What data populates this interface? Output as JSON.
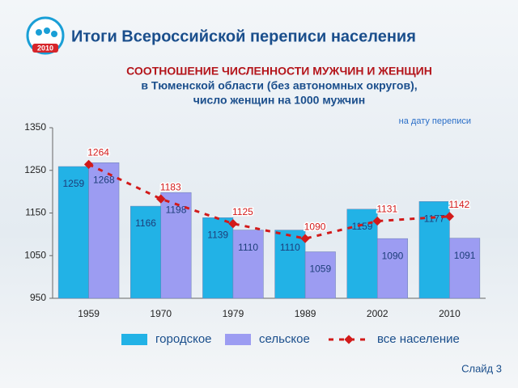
{
  "header": {
    "title": "Итоги Всероссийской переписи населения",
    "logo_year": "2010"
  },
  "chart_data": {
    "type": "bar",
    "title": [
      "СООТНОШЕНИЕ ЧИСЛЕННОСТИ МУЖЧИН И ЖЕНЩИН",
      "в Тюменской области (без автономных округов),",
      "число женщин на 1000 мужчин"
    ],
    "annotation": "на дату переписи",
    "categories": [
      "1959",
      "1970",
      "1979",
      "1989",
      "2002",
      "2010"
    ],
    "series": [
      {
        "name": "городское",
        "color": "#22b2e6",
        "values": [
          1259,
          1166,
          1139,
          1110,
          1159,
          1177
        ]
      },
      {
        "name": "сельское",
        "color": "#9c9cf2",
        "values": [
          1268,
          1198,
          1110,
          1059,
          1090,
          1091
        ]
      },
      {
        "name": "все население",
        "color": "#d21a1a",
        "type": "line",
        "values": [
          1264,
          1183,
          1125,
          1090,
          1131,
          1142
        ]
      }
    ],
    "ylim": [
      950,
      1350
    ],
    "yticks": [
      950,
      1050,
      1150,
      1250,
      1350
    ]
  },
  "footer": {
    "slide": "Слайд 3"
  }
}
